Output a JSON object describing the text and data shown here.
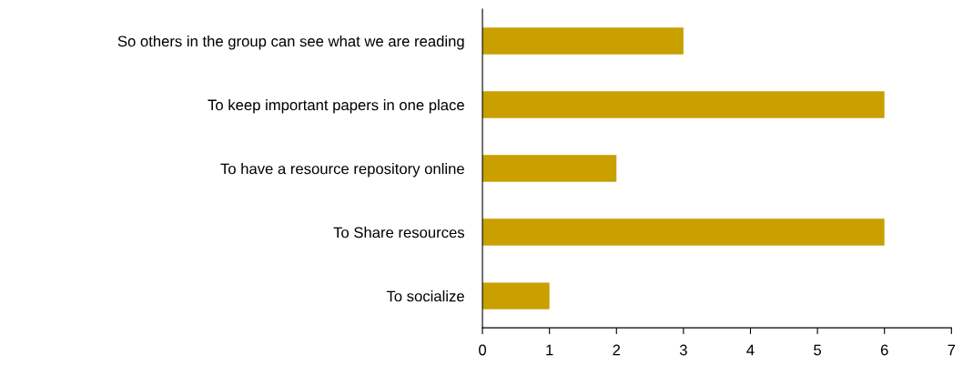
{
  "chart_data": {
    "type": "bar",
    "orientation": "horizontal",
    "categories": [
      "So others in the group can see what we are reading",
      "To keep important papers in one place",
      "To have a resource repository online",
      "To Share resources",
      "To socialize"
    ],
    "values": [
      3,
      6,
      2,
      6,
      1
    ],
    "color": "#c9a000",
    "xlim": [
      0,
      7
    ],
    "xticks": [
      0,
      1,
      2,
      3,
      4,
      5,
      6,
      7
    ],
    "grid": false,
    "legend": false
  }
}
